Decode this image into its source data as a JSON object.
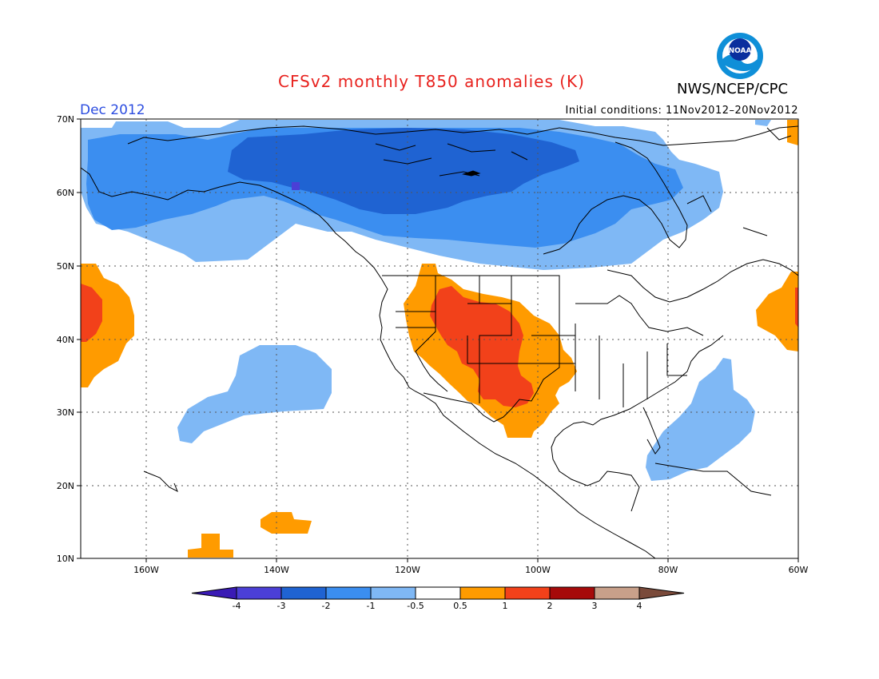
{
  "header": {
    "title": "CFSv2 monthly T850 anomalies (K)",
    "month": "Dec 2012",
    "initial_conditions": "Initial conditions: 11Nov2012–20Nov2012",
    "agency": "NWS/NCEP/CPC",
    "logo_text": "NOAA"
  },
  "axes": {
    "lat_labels": [
      "70N",
      "60N",
      "50N",
      "40N",
      "30N",
      "20N",
      "10N"
    ],
    "lon_labels": [
      "160W",
      "140W",
      "120W",
      "100W",
      "80W",
      "60W"
    ]
  },
  "colorbar": {
    "labels": [
      "-4",
      "-3",
      "-2",
      "-1",
      "-0.5",
      "0.5",
      "1",
      "2",
      "3",
      "4"
    ],
    "colors": [
      "#3a1bb5",
      "#4b3fd6",
      "#1f63d2",
      "#3b8ef0",
      "#7fb8f5",
      "#ffffff",
      "#ff9b00",
      "#f2411a",
      "#a60a0a",
      "#c8a08a",
      "#7a4a3a"
    ]
  },
  "colors": {
    "cold_3": "#1f63d2",
    "cold_2": "#3b8ef0",
    "cold_1": "#7fb8f5",
    "warm_1": "#ff9b00",
    "warm_2": "#f2411a"
  }
}
